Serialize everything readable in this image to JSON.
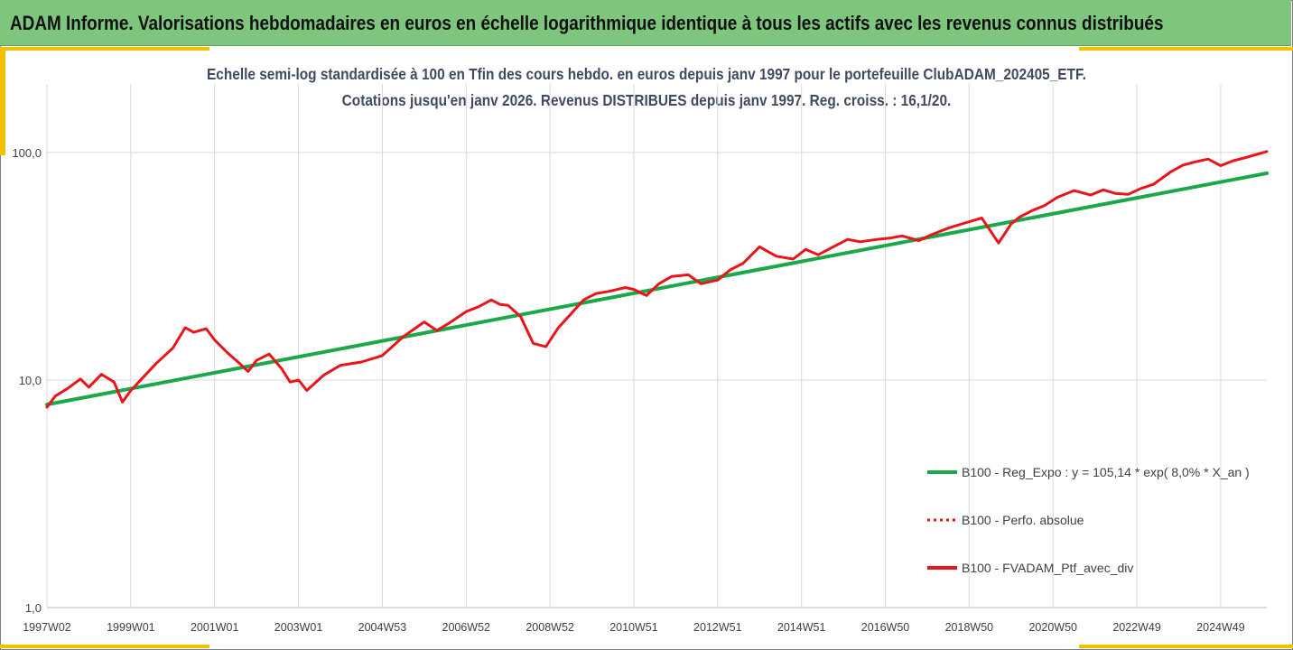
{
  "header": {
    "title": "ADAM Informe. Valorisations hebdomadaires en euros en échelle logarithmique identique à tous les actifs avec les revenus connus distribués"
  },
  "colors": {
    "header_bg": "#7ec57d",
    "accent": "#f2c100",
    "regression": "#1aa84a",
    "portfolio": "#e8161a",
    "grid": "#d9d9d9",
    "title_text": "#404a60"
  },
  "chart_data": {
    "type": "line",
    "title": "Echelle semi-log standardisée  à 100 en Tfin des cours hebdo.  en euros depuis janv 1997 pour le portefeuille ClubADAM_202405_ETF.",
    "subtitle": "Cotations  jusqu'en janv 2026. Revenus DISTRIBUES depuis janv 1997. Reg. croiss. : 16,1/20.",
    "xlabel": "",
    "ylabel": "",
    "y_scale": "log",
    "ylim": [
      1,
      200
    ],
    "y_ticks": [
      "1,0",
      "10,0",
      "100,0"
    ],
    "y_tick_values": [
      1,
      10,
      100
    ],
    "xlim": [
      1997.0,
      2026.1
    ],
    "x_ticks": [
      "1997W02",
      "1999W01",
      "2001W01",
      "2003W01",
      "2004W53",
      "2006W52",
      "2008W52",
      "2010W51",
      "2012W51",
      "2014W51",
      "2016W50",
      "2018W50",
      "2020W50",
      "2022W49",
      "2024W49"
    ],
    "x_tick_values": [
      1997.0,
      1999.0,
      2001.0,
      2003.0,
      2005.0,
      2007.0,
      2009.0,
      2011.0,
      2013.0,
      2015.0,
      2017.0,
      2019.0,
      2021.0,
      2023.0,
      2025.0
    ],
    "grid": "vertical and horizontal",
    "legend_position": "lower-right",
    "series": [
      {
        "name": "B100 - Reg_Expo : y = 105,14 * exp( 8,0% *  X_an )",
        "style": "solid",
        "color": "#1aa84a",
        "x": [
          1997.0,
          2026.1
        ],
        "y": [
          7.8,
          81
        ]
      },
      {
        "name": "B100 - Perfo. absolue",
        "style": "dotted",
        "color": "#e8161a",
        "x": [],
        "y": []
      },
      {
        "name": "B100 - FVADAM_Ptf_avec_div",
        "style": "solid",
        "color": "#e8161a",
        "x": [
          1997.0,
          1997.2,
          1997.5,
          1997.8,
          1998.0,
          1998.3,
          1998.6,
          1998.8,
          1999.0,
          1999.3,
          1999.6,
          2000.0,
          2000.3,
          2000.5,
          2000.8,
          2001.0,
          2001.3,
          2001.6,
          2001.8,
          2002.0,
          2002.3,
          2002.6,
          2002.8,
          2003.0,
          2003.2,
          2003.6,
          2004.0,
          2004.5,
          2005.0,
          2005.5,
          2006.0,
          2006.3,
          2006.6,
          2007.0,
          2007.3,
          2007.6,
          2007.8,
          2008.0,
          2008.3,
          2008.6,
          2008.9,
          2009.2,
          2009.5,
          2009.8,
          2010.1,
          2010.4,
          2010.8,
          2011.0,
          2011.3,
          2011.6,
          2011.9,
          2012.3,
          2012.6,
          2013.0,
          2013.3,
          2013.6,
          2014.0,
          2014.4,
          2014.8,
          2015.1,
          2015.4,
          2015.7,
          2016.1,
          2016.4,
          2016.8,
          2017.1,
          2017.4,
          2017.8,
          2018.1,
          2018.5,
          2018.9,
          2019.3,
          2019.7,
          2020.0,
          2020.2,
          2020.5,
          2020.8,
          2021.1,
          2021.5,
          2021.9,
          2022.2,
          2022.5,
          2022.8,
          2023.1,
          2023.4,
          2023.8,
          2024.1,
          2024.4,
          2024.7,
          2025.0,
          2025.3,
          2025.6,
          2025.9,
          2026.1
        ],
        "y": [
          7.6,
          8.5,
          9.2,
          10.1,
          9.3,
          10.6,
          9.8,
          8.0,
          9.0,
          10.3,
          11.8,
          13.8,
          17.0,
          16.2,
          16.8,
          15.0,
          13.2,
          11.8,
          10.9,
          12.2,
          13.0,
          11.2,
          9.8,
          10.0,
          9.0,
          10.5,
          11.6,
          12.0,
          12.8,
          15.5,
          18.0,
          16.5,
          17.8,
          20.0,
          21.0,
          22.5,
          21.5,
          21.3,
          19.0,
          14.5,
          14.0,
          17.0,
          19.5,
          22.5,
          24.0,
          24.5,
          25.5,
          25.0,
          23.5,
          26.5,
          28.5,
          29.0,
          26.5,
          27.5,
          30.5,
          32.5,
          38.5,
          35.0,
          34.0,
          37.5,
          35.5,
          38.0,
          41.5,
          40.5,
          41.5,
          42.0,
          43.0,
          41.0,
          43.5,
          46.5,
          49.0,
          51.5,
          40.0,
          48.5,
          52.0,
          55.5,
          58.5,
          63.5,
          68.0,
          65.0,
          68.5,
          66.0,
          65.5,
          69.5,
          72.5,
          82.0,
          88.0,
          91.0,
          93.5,
          87.5,
          92.0,
          95.0,
          98.5,
          101.0
        ]
      }
    ]
  }
}
